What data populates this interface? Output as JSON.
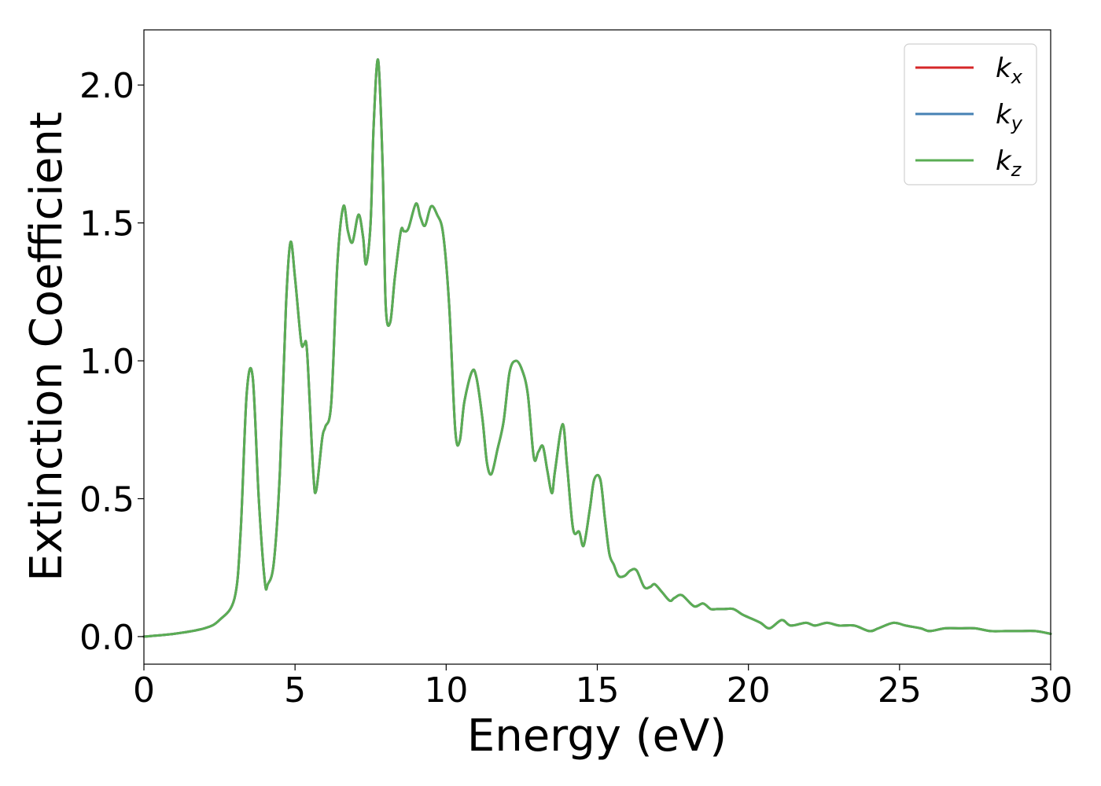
{
  "chart_data": {
    "type": "line",
    "xlabel": "Energy (eV)",
    "ylabel": "Extinction Coefficient",
    "xlim": [
      0,
      30
    ],
    "ylim": [
      -0.1,
      2.2
    ],
    "xticks": [
      0,
      5,
      10,
      15,
      20,
      25,
      30
    ],
    "yticks": [
      0.0,
      0.5,
      1.0,
      1.5,
      2.0
    ],
    "xtick_labels": [
      "0",
      "5",
      "10",
      "15",
      "20",
      "25",
      "30"
    ],
    "ytick_labels": [
      "0.0",
      "0.5",
      "1.0",
      "1.5",
      "2.0"
    ],
    "grid": false,
    "legend_position": "top-right",
    "series": [
      {
        "name": "k_x",
        "label_base": "k",
        "label_sub": "x",
        "color": "#d62728",
        "x": [
          0,
          1,
          2,
          2.5,
          3,
          3.2,
          3.4,
          3.6,
          3.8,
          4.0,
          4.1,
          4.3,
          4.5,
          4.7,
          4.85,
          5.0,
          5.2,
          5.3,
          5.4,
          5.6,
          5.7,
          5.9,
          6.0,
          6.2,
          6.4,
          6.6,
          6.75,
          6.9,
          7.1,
          7.25,
          7.35,
          7.5,
          7.6,
          7.75,
          7.9,
          8.0,
          8.15,
          8.3,
          8.5,
          8.6,
          8.75,
          9.0,
          9.15,
          9.3,
          9.5,
          9.7,
          9.9,
          10.1,
          10.3,
          10.45,
          10.6,
          10.85,
          11.0,
          11.2,
          11.35,
          11.5,
          11.7,
          11.9,
          12.1,
          12.3,
          12.5,
          12.7,
          12.9,
          13.05,
          13.2,
          13.35,
          13.5,
          13.6,
          13.85,
          14.0,
          14.2,
          14.4,
          14.55,
          14.75,
          14.9,
          15.1,
          15.25,
          15.4,
          15.55,
          15.7,
          15.9,
          16.1,
          16.3,
          16.55,
          16.75,
          16.9,
          17.15,
          17.4,
          17.55,
          17.8,
          18.2,
          18.5,
          18.75,
          18.95,
          19.2,
          19.5,
          19.8,
          20.0,
          20.4,
          20.7,
          21.1,
          21.4,
          21.9,
          22.2,
          22.6,
          23.0,
          23.5,
          24.0,
          24.3,
          24.8,
          25.2,
          25.7,
          26.0,
          26.5,
          27.0,
          27.5,
          28.0,
          28.5,
          29.0,
          29.5,
          30.0
        ],
        "y": [
          0.0,
          0.01,
          0.03,
          0.06,
          0.14,
          0.38,
          0.88,
          0.94,
          0.5,
          0.2,
          0.19,
          0.27,
          0.6,
          1.2,
          1.43,
          1.3,
          1.07,
          1.06,
          1.03,
          0.6,
          0.53,
          0.72,
          0.76,
          0.85,
          1.35,
          1.56,
          1.47,
          1.43,
          1.53,
          1.45,
          1.35,
          1.5,
          1.85,
          2.09,
          1.7,
          1.2,
          1.14,
          1.3,
          1.47,
          1.47,
          1.48,
          1.57,
          1.52,
          1.49,
          1.56,
          1.53,
          1.46,
          1.2,
          0.75,
          0.71,
          0.85,
          0.96,
          0.94,
          0.79,
          0.63,
          0.59,
          0.68,
          0.78,
          0.96,
          1.0,
          0.97,
          0.88,
          0.65,
          0.67,
          0.69,
          0.6,
          0.52,
          0.6,
          0.77,
          0.62,
          0.39,
          0.38,
          0.33,
          0.46,
          0.57,
          0.57,
          0.43,
          0.3,
          0.26,
          0.22,
          0.22,
          0.24,
          0.24,
          0.18,
          0.18,
          0.19,
          0.16,
          0.13,
          0.14,
          0.15,
          0.11,
          0.12,
          0.1,
          0.1,
          0.1,
          0.1,
          0.08,
          0.07,
          0.05,
          0.03,
          0.06,
          0.04,
          0.05,
          0.04,
          0.05,
          0.04,
          0.04,
          0.02,
          0.03,
          0.05,
          0.04,
          0.03,
          0.02,
          0.03,
          0.03,
          0.03,
          0.02,
          0.02,
          0.02,
          0.02,
          0.01
        ]
      },
      {
        "name": "k_y",
        "label_base": "k",
        "label_sub": "y",
        "color": "#4682b4",
        "x": [
          0,
          1,
          2,
          2.5,
          3,
          3.2,
          3.4,
          3.6,
          3.8,
          4.0,
          4.1,
          4.3,
          4.5,
          4.7,
          4.85,
          5.0,
          5.2,
          5.3,
          5.4,
          5.6,
          5.7,
          5.9,
          6.0,
          6.2,
          6.4,
          6.6,
          6.75,
          6.9,
          7.1,
          7.25,
          7.35,
          7.5,
          7.6,
          7.75,
          7.9,
          8.0,
          8.15,
          8.3,
          8.5,
          8.6,
          8.75,
          9.0,
          9.15,
          9.3,
          9.5,
          9.7,
          9.9,
          10.1,
          10.3,
          10.45,
          10.6,
          10.85,
          11.0,
          11.2,
          11.35,
          11.5,
          11.7,
          11.9,
          12.1,
          12.3,
          12.5,
          12.7,
          12.9,
          13.05,
          13.2,
          13.35,
          13.5,
          13.6,
          13.85,
          14.0,
          14.2,
          14.4,
          14.55,
          14.75,
          14.9,
          15.1,
          15.25,
          15.4,
          15.55,
          15.7,
          15.9,
          16.1,
          16.3,
          16.55,
          16.75,
          16.9,
          17.15,
          17.4,
          17.55,
          17.8,
          18.2,
          18.5,
          18.75,
          18.95,
          19.2,
          19.5,
          19.8,
          20.0,
          20.4,
          20.7,
          21.1,
          21.4,
          21.9,
          22.2,
          22.6,
          23.0,
          23.5,
          24.0,
          24.3,
          24.8,
          25.2,
          25.7,
          26.0,
          26.5,
          27.0,
          27.5,
          28.0,
          28.5,
          29.0,
          29.5,
          30.0
        ],
        "y": [
          0.0,
          0.01,
          0.03,
          0.06,
          0.14,
          0.38,
          0.88,
          0.94,
          0.5,
          0.2,
          0.19,
          0.27,
          0.6,
          1.2,
          1.43,
          1.3,
          1.07,
          1.06,
          1.03,
          0.6,
          0.53,
          0.72,
          0.76,
          0.85,
          1.35,
          1.56,
          1.47,
          1.43,
          1.53,
          1.45,
          1.35,
          1.5,
          1.85,
          2.09,
          1.7,
          1.2,
          1.14,
          1.3,
          1.47,
          1.47,
          1.48,
          1.57,
          1.52,
          1.49,
          1.56,
          1.53,
          1.46,
          1.2,
          0.75,
          0.71,
          0.85,
          0.96,
          0.94,
          0.79,
          0.63,
          0.59,
          0.68,
          0.78,
          0.96,
          1.0,
          0.97,
          0.88,
          0.65,
          0.67,
          0.69,
          0.6,
          0.52,
          0.6,
          0.77,
          0.62,
          0.39,
          0.38,
          0.33,
          0.46,
          0.57,
          0.57,
          0.43,
          0.3,
          0.26,
          0.22,
          0.22,
          0.24,
          0.24,
          0.18,
          0.18,
          0.19,
          0.16,
          0.13,
          0.14,
          0.15,
          0.11,
          0.12,
          0.1,
          0.1,
          0.1,
          0.1,
          0.08,
          0.07,
          0.05,
          0.03,
          0.06,
          0.04,
          0.05,
          0.04,
          0.05,
          0.04,
          0.04,
          0.02,
          0.03,
          0.05,
          0.04,
          0.03,
          0.02,
          0.03,
          0.03,
          0.03,
          0.02,
          0.02,
          0.02,
          0.02,
          0.01
        ]
      },
      {
        "name": "k_z",
        "label_base": "k",
        "label_sub": "z",
        "color": "#5aad54",
        "x": [
          0,
          1,
          2,
          2.5,
          3,
          3.2,
          3.4,
          3.6,
          3.8,
          4.0,
          4.1,
          4.3,
          4.5,
          4.7,
          4.85,
          5.0,
          5.2,
          5.3,
          5.4,
          5.6,
          5.7,
          5.9,
          6.0,
          6.2,
          6.4,
          6.6,
          6.75,
          6.9,
          7.1,
          7.25,
          7.35,
          7.5,
          7.6,
          7.75,
          7.9,
          8.0,
          8.15,
          8.3,
          8.5,
          8.6,
          8.75,
          9.0,
          9.15,
          9.3,
          9.5,
          9.7,
          9.9,
          10.1,
          10.3,
          10.45,
          10.6,
          10.85,
          11.0,
          11.2,
          11.35,
          11.5,
          11.7,
          11.9,
          12.1,
          12.3,
          12.5,
          12.7,
          12.9,
          13.05,
          13.2,
          13.35,
          13.5,
          13.6,
          13.85,
          14.0,
          14.2,
          14.4,
          14.55,
          14.75,
          14.9,
          15.1,
          15.25,
          15.4,
          15.55,
          15.7,
          15.9,
          16.1,
          16.3,
          16.55,
          16.75,
          16.9,
          17.15,
          17.4,
          17.55,
          17.8,
          18.2,
          18.5,
          18.75,
          18.95,
          19.2,
          19.5,
          19.8,
          20.0,
          20.4,
          20.7,
          21.1,
          21.4,
          21.9,
          22.2,
          22.6,
          23.0,
          23.5,
          24.0,
          24.3,
          24.8,
          25.2,
          25.7,
          26.0,
          26.5,
          27.0,
          27.5,
          28.0,
          28.5,
          29.0,
          29.5,
          30.0
        ],
        "y": [
          0.0,
          0.01,
          0.03,
          0.06,
          0.14,
          0.38,
          0.88,
          0.94,
          0.5,
          0.2,
          0.19,
          0.27,
          0.6,
          1.2,
          1.43,
          1.3,
          1.07,
          1.06,
          1.03,
          0.6,
          0.53,
          0.72,
          0.76,
          0.85,
          1.35,
          1.56,
          1.47,
          1.43,
          1.53,
          1.45,
          1.35,
          1.5,
          1.85,
          2.09,
          1.7,
          1.2,
          1.14,
          1.3,
          1.47,
          1.47,
          1.48,
          1.57,
          1.52,
          1.49,
          1.56,
          1.53,
          1.46,
          1.2,
          0.75,
          0.71,
          0.85,
          0.96,
          0.94,
          0.79,
          0.63,
          0.59,
          0.68,
          0.78,
          0.96,
          1.0,
          0.97,
          0.88,
          0.65,
          0.67,
          0.69,
          0.6,
          0.52,
          0.6,
          0.77,
          0.62,
          0.39,
          0.38,
          0.33,
          0.46,
          0.57,
          0.57,
          0.43,
          0.3,
          0.26,
          0.22,
          0.22,
          0.24,
          0.24,
          0.18,
          0.18,
          0.19,
          0.16,
          0.13,
          0.14,
          0.15,
          0.11,
          0.12,
          0.1,
          0.1,
          0.1,
          0.1,
          0.08,
          0.07,
          0.05,
          0.03,
          0.06,
          0.04,
          0.05,
          0.04,
          0.05,
          0.04,
          0.04,
          0.02,
          0.03,
          0.05,
          0.04,
          0.03,
          0.02,
          0.03,
          0.03,
          0.03,
          0.02,
          0.02,
          0.02,
          0.02,
          0.01
        ]
      }
    ]
  }
}
